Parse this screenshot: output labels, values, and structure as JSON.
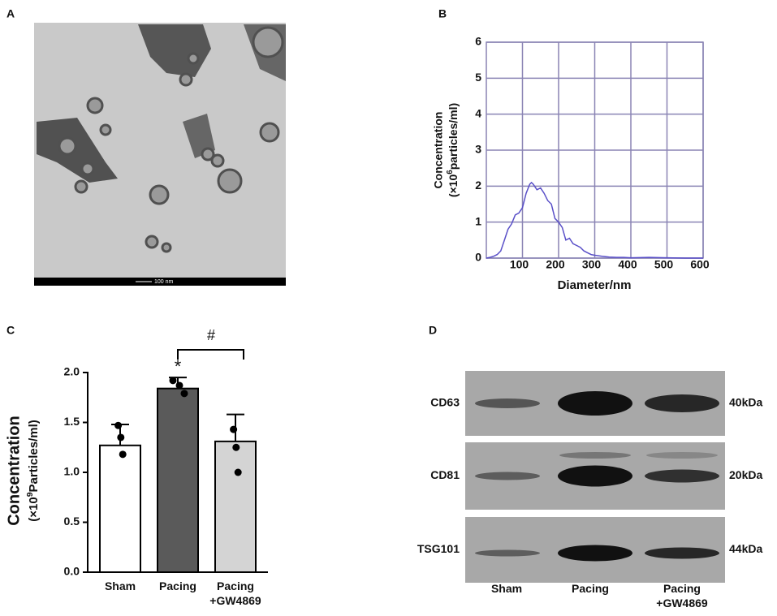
{
  "panel_labels": [
    "A",
    "B",
    "C",
    "D"
  ],
  "micrograph": {
    "scale_bar": "100 nm"
  },
  "chart_data": [
    {
      "type": "line",
      "x": [
        0,
        10,
        20,
        30,
        40,
        50,
        60,
        70,
        80,
        90,
        100,
        110,
        120,
        125,
        130,
        140,
        150,
        160,
        170,
        180,
        190,
        200,
        210,
        220,
        230,
        240,
        250,
        260,
        270,
        280,
        290,
        300,
        320,
        340,
        360,
        380,
        400,
        450,
        500,
        550,
        600
      ],
      "series": [
        {
          "color": "#5a50c8",
          "values": [
            0,
            0.02,
            0.05,
            0.1,
            0.2,
            0.5,
            0.8,
            0.95,
            1.2,
            1.25,
            1.4,
            1.8,
            2.05,
            2.1,
            2.05,
            1.9,
            1.95,
            1.8,
            1.6,
            1.5,
            1.1,
            1.0,
            0.85,
            0.5,
            0.55,
            0.4,
            0.35,
            0.3,
            0.2,
            0.15,
            0.1,
            0.08,
            0.05,
            0.03,
            0.02,
            0.02,
            0.01,
            0.02,
            0.01,
            0,
            0
          ]
        }
      ],
      "xlim": [
        0,
        600
      ],
      "xticks": [
        100,
        200,
        300,
        400,
        500,
        600
      ],
      "ylim": [
        0,
        6
      ],
      "yticks": [
        0,
        1,
        2,
        3,
        4,
        5,
        6
      ],
      "grid": true,
      "x_label": "Diameter/nm",
      "y_label": {
        "line1": "Concentration",
        "pre": "(×10",
        "sup": "6",
        "post": "particles/ml)"
      }
    },
    {
      "type": "bar",
      "categories": [
        "Sham",
        "Pacing",
        "Pacing\n+GW4869"
      ],
      "values": [
        1.27,
        1.84,
        1.31
      ],
      "errors": [
        0.21,
        0.11,
        0.27
      ],
      "points": [
        [
          1.47,
          1.35,
          1.18
        ],
        [
          1.92,
          1.87,
          1.79
        ],
        [
          1.43,
          1.25,
          1.0
        ]
      ],
      "colors": [
        "#ffffff",
        "#5a5a5a",
        "#d4d4d4"
      ],
      "ylim": [
        0,
        2
      ],
      "yticks": [
        {
          "value": 0,
          "label": "0.0"
        },
        {
          "value": 0.5,
          "label": "0.5"
        },
        {
          "value": 1,
          "label": "1.0"
        },
        {
          "value": 1.5,
          "label": "1.5"
        },
        {
          "value": 2,
          "label": "2.0"
        }
      ],
      "y_label": {
        "line1": "Concentration",
        "pre": "(×10",
        "sup": "9",
        "post": "Particles/ml)"
      },
      "annotations": [
        "*",
        "#"
      ]
    }
  ],
  "blot": {
    "rows": [
      {
        "label": "CD63",
        "size": "40kDa"
      },
      {
        "label": "CD81",
        "size": "20kDa"
      },
      {
        "label": "TSG101",
        "size": "44kDa"
      }
    ],
    "lanes": [
      "Sham",
      "Pacing",
      "Pacing\n+GW4869"
    ]
  }
}
